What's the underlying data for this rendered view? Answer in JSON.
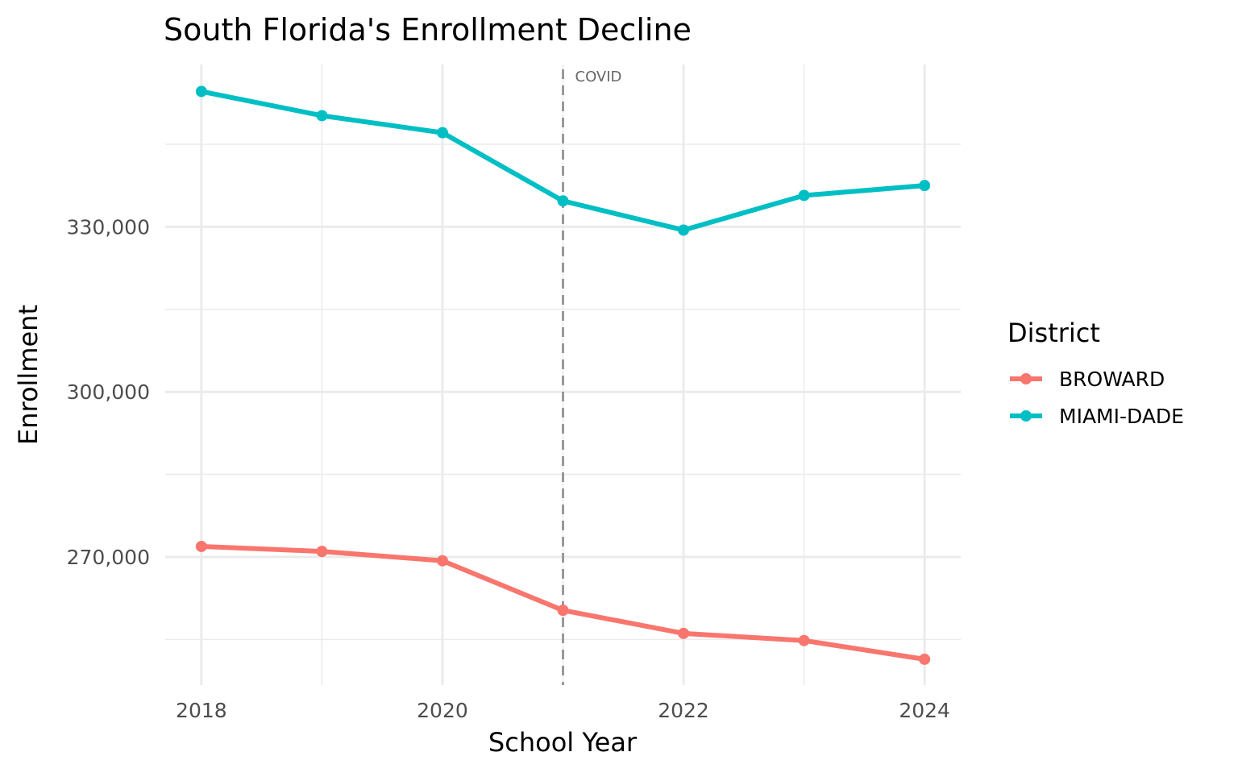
{
  "chart_data": {
    "type": "line",
    "title": "South Florida's Enrollment Decline",
    "xlabel": "School Year",
    "ylabel": "Enrollment",
    "x": [
      2018,
      2019,
      2020,
      2021,
      2022,
      2023,
      2024
    ],
    "xticks": [
      "2018",
      "2020",
      "2022",
      "2024"
    ],
    "yticks": [
      "270,000",
      "300,000",
      "330,000"
    ],
    "ytick_values": [
      270000,
      300000,
      330000
    ],
    "xlim": [
      2017.7,
      2024.3
    ],
    "ylim": [
      246700,
      359500
    ],
    "grid": true,
    "legend": {
      "title": "District",
      "placement": "right"
    },
    "series": [
      {
        "name": "BROWARD",
        "color": "#F8766D",
        "values": [
          271900,
          271000,
          269300,
          260300,
          256100,
          254800,
          251400
        ]
      },
      {
        "name": "MIAMI-DADE",
        "color": "#00BFC4",
        "values": [
          354600,
          350200,
          347100,
          334700,
          329400,
          335700,
          337500
        ]
      }
    ],
    "annotations": [
      {
        "x": 2021,
        "label": "COVID",
        "style": "dashed vertical line"
      }
    ]
  }
}
